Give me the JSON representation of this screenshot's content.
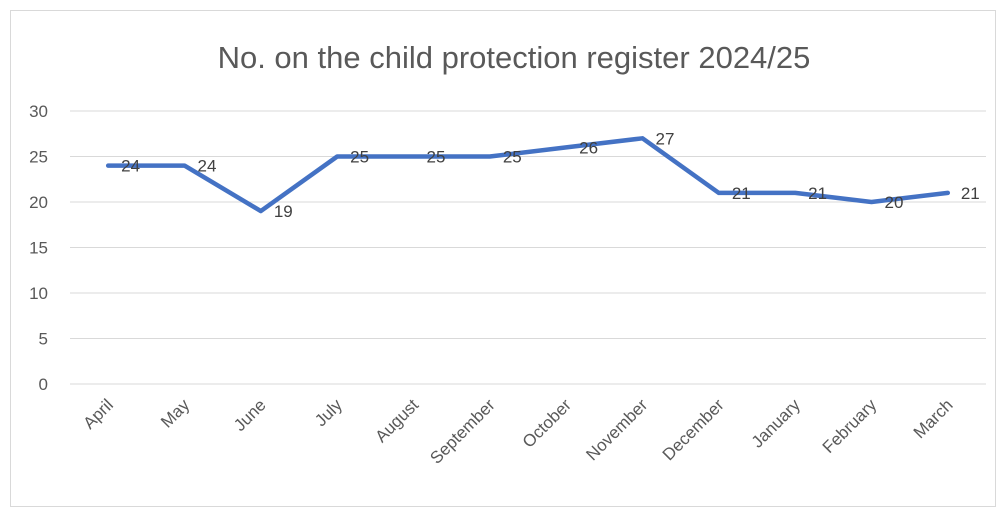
{
  "chart_data": {
    "type": "line",
    "title": "No. on the child protection register 2024/25",
    "xlabel": "",
    "ylabel": "",
    "categories": [
      "April",
      "May",
      "June",
      "July",
      "August",
      "September",
      "October",
      "November",
      "December",
      "January",
      "February",
      "March"
    ],
    "values": [
      24,
      24,
      19,
      25,
      25,
      25,
      26,
      27,
      21,
      21,
      20,
      21
    ],
    "ylim": [
      0,
      30
    ],
    "yticks": [
      0,
      5,
      10,
      15,
      20,
      25,
      30
    ],
    "grid": true,
    "legend": "none",
    "line_color": "#4472c4"
  }
}
